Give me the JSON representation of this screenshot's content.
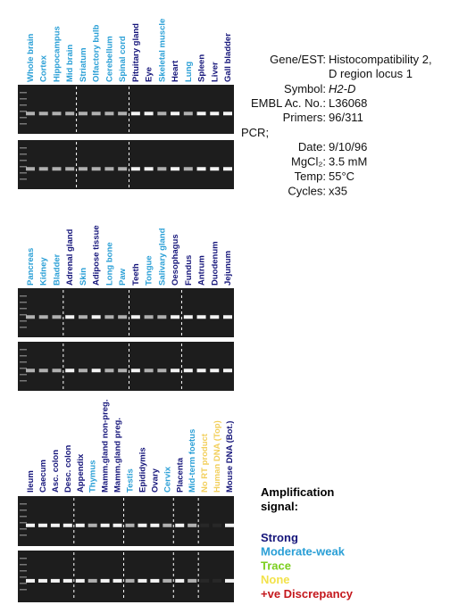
{
  "panels": [
    {
      "lanes": [
        {
          "label": "Whole brain",
          "color": "#2a9fd6"
        },
        {
          "label": "Cortex",
          "color": "#2a9fd6"
        },
        {
          "label": "Hippocampus",
          "color": "#2a9fd6"
        },
        {
          "label": "Mid brain",
          "color": "#2a9fd6"
        },
        {
          "label": "Striatum",
          "color": "#2a9fd6"
        },
        {
          "label": "Olfactory bulb",
          "color": "#2a9fd6"
        },
        {
          "label": "Cerebellum",
          "color": "#2a9fd6"
        },
        {
          "label": "Spinal cord",
          "color": "#2a9fd6"
        },
        {
          "label": "Pituitary gland",
          "color": "#15157a"
        },
        {
          "label": "Eye",
          "color": "#15157a"
        },
        {
          "label": "Skeletal muscle",
          "color": "#2a9fd6"
        },
        {
          "label": "Heart",
          "color": "#15157a"
        },
        {
          "label": "Lung",
          "color": "#2a9fd6"
        },
        {
          "label": "Spleen",
          "color": "#15157a"
        },
        {
          "label": "Liver",
          "color": "#15157a"
        },
        {
          "label": "Gall bladder",
          "color": "#15157a"
        }
      ]
    },
    {
      "lanes": [
        {
          "label": "Pancreas",
          "color": "#2a9fd6"
        },
        {
          "label": "Kidney",
          "color": "#2a9fd6"
        },
        {
          "label": "Bladder",
          "color": "#2a9fd6"
        },
        {
          "label": "Adrenal gland",
          "color": "#15157a"
        },
        {
          "label": "Skin",
          "color": "#2a9fd6"
        },
        {
          "label": "Adipose tissue",
          "color": "#15157a"
        },
        {
          "label": "Long bone",
          "color": "#2a9fd6"
        },
        {
          "label": "Paw",
          "color": "#2a9fd6"
        },
        {
          "label": "Teeth",
          "color": "#15157a"
        },
        {
          "label": "Tongue",
          "color": "#2a9fd6"
        },
        {
          "label": "Salivary gland",
          "color": "#2a9fd6"
        },
        {
          "label": "Oesophagus",
          "color": "#15157a"
        },
        {
          "label": "Fundus",
          "color": "#15157a"
        },
        {
          "label": "Antrum",
          "color": "#15157a"
        },
        {
          "label": "Duodenum",
          "color": "#15157a"
        },
        {
          "label": "Jejunum",
          "color": "#15157a"
        }
      ]
    },
    {
      "lanes": [
        {
          "label": "Ileum",
          "color": "#15157a"
        },
        {
          "label": "Caecum",
          "color": "#15157a"
        },
        {
          "label": "Asc. colon",
          "color": "#15157a"
        },
        {
          "label": "Desc. colon",
          "color": "#15157a"
        },
        {
          "label": "Appendix",
          "color": "#15157a"
        },
        {
          "label": "Thymus",
          "color": "#2a9fd6"
        },
        {
          "label": "Mamm.gland non-preg.",
          "color": "#15157a"
        },
        {
          "label": "Mamm.gland preg.",
          "color": "#15157a"
        },
        {
          "label": "Testis",
          "color": "#2a9fd6"
        },
        {
          "label": "Epididymis",
          "color": "#15157a"
        },
        {
          "label": "Ovary",
          "color": "#15157a"
        },
        {
          "label": "Cervix",
          "color": "#2a9fd6"
        },
        {
          "label": "Placenta",
          "color": "#15157a"
        },
        {
          "label": "Mid-term foetus",
          "color": "#2a9fd6"
        },
        {
          "label": "No RT product",
          "color": "#f2cf5b"
        },
        {
          "label": "Human DNA (Top)",
          "color": "#f2cf5b"
        },
        {
          "label": "Mouse DNA (Bot.)",
          "color": "#15157a"
        }
      ]
    }
  ],
  "info": {
    "gene_key": "Gene/EST:",
    "gene_lines": [
      "Histocompatibility 2,",
      "D region locus 1"
    ],
    "rows1": [
      {
        "key": "Symbol:",
        "value": "H2-D"
      },
      {
        "key": "EMBL Ac. No.:",
        "value": "L36068"
      },
      {
        "key": "Primers:",
        "value": "96/311"
      }
    ],
    "pcr": "PCR;",
    "rows2": [
      {
        "key": "Date:",
        "value": "9/10/96"
      },
      {
        "key": "MgCl₂:",
        "value": "3.5 mM"
      },
      {
        "key": "Temp:",
        "value": "55°C"
      },
      {
        "key": "Cycles:",
        "value": "x35"
      }
    ]
  },
  "legend": {
    "title_lines": [
      "Amplification",
      "signal:"
    ],
    "items": [
      {
        "label": "Strong",
        "color": "#15157a"
      },
      {
        "label": "Moderate-weak",
        "color": "#2a9fd6"
      },
      {
        "label": "Trace",
        "color": "#7ccf1f"
      },
      {
        "label": "None",
        "color": "#f2e24a"
      },
      {
        "label": "+ve Discrepancy",
        "color": "#c4171c"
      }
    ]
  }
}
